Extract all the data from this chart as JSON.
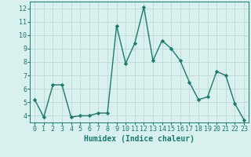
{
  "x": [
    0,
    1,
    2,
    3,
    4,
    5,
    6,
    7,
    8,
    9,
    10,
    11,
    12,
    13,
    14,
    15,
    16,
    17,
    18,
    19,
    20,
    21,
    22,
    23
  ],
  "y": [
    5.2,
    3.9,
    6.3,
    6.3,
    3.9,
    4.0,
    4.0,
    4.2,
    4.2,
    10.7,
    7.9,
    9.4,
    12.1,
    8.1,
    9.6,
    9.0,
    8.1,
    6.5,
    5.2,
    5.4,
    7.3,
    7.0,
    4.9,
    3.7
  ],
  "line_color": "#1a7a6e",
  "marker": "D",
  "markersize": 2.2,
  "linewidth": 1.0,
  "bg_color": "#d8f0ee",
  "grid_color": "#c0d8d4",
  "xlabel": "Humidex (Indice chaleur)",
  "xlabel_fontsize": 7,
  "tick_fontsize": 6,
  "xlim": [
    -0.5,
    23.5
  ],
  "ylim": [
    3.5,
    12.5
  ],
  "yticks": [
    4,
    5,
    6,
    7,
    8,
    9,
    10,
    11,
    12
  ],
  "xticks": [
    0,
    1,
    2,
    3,
    4,
    5,
    6,
    7,
    8,
    9,
    10,
    11,
    12,
    13,
    14,
    15,
    16,
    17,
    18,
    19,
    20,
    21,
    22,
    23
  ]
}
